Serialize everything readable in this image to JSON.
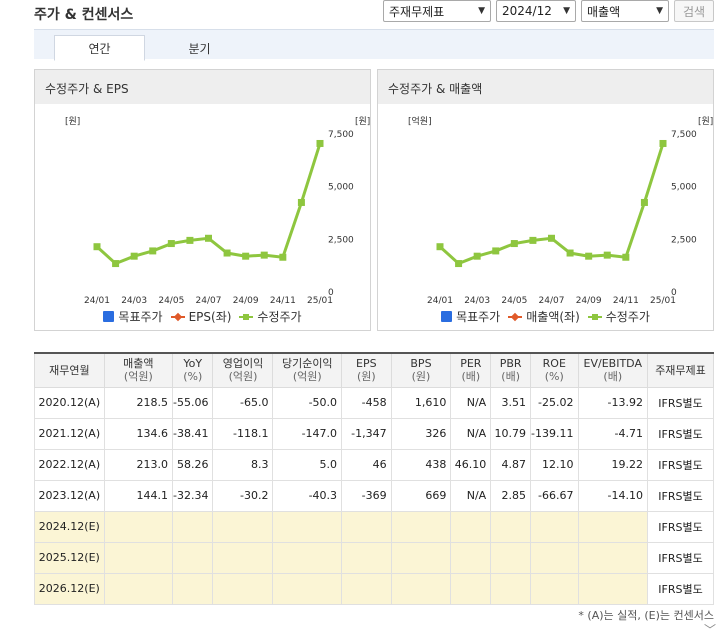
{
  "title": "주가 & 컨센서스",
  "controls": {
    "report_type": "주재무제표",
    "period": "2024/12",
    "metric": "매출액",
    "search": "검색"
  },
  "tabs": {
    "annual": "연간",
    "quarterly": "분기"
  },
  "charts": [
    {
      "title": "수정주가 & EPS",
      "left_unit": "[원]",
      "right_unit": "[원]",
      "legend": [
        "목표주가",
        "EPS(좌)",
        "수정주가"
      ]
    },
    {
      "title": "수정주가 & 매출액",
      "left_unit": "[억원]",
      "right_unit": "[원]",
      "legend": [
        "목표주가",
        "매출액(좌)",
        "수정주가"
      ]
    }
  ],
  "chart_data": [
    {
      "type": "line",
      "title": "수정주가 & EPS",
      "x": [
        "24/01",
        "24/02",
        "24/03",
        "24/04",
        "24/05",
        "24/06",
        "24/07",
        "24/08",
        "24/09",
        "24/10",
        "24/11",
        "24/12",
        "25/01"
      ],
      "x_tick_labels": [
        "24/01",
        "24/03",
        "24/05",
        "24/07",
        "24/09",
        "24/11",
        "25/01"
      ],
      "y_right_ticks": [
        "0",
        "2,500",
        "5,000",
        "7,500"
      ],
      "y_right_range": [
        0,
        7500
      ],
      "series": [
        {
          "name": "수정주가",
          "axis": "right",
          "color": "#8ec63f",
          "values": [
            2150,
            1350,
            1700,
            1950,
            2300,
            2450,
            2550,
            1850,
            1700,
            1750,
            1650,
            4250,
            7050
          ]
        }
      ]
    },
    {
      "type": "line",
      "title": "수정주가 & 매출액",
      "x": [
        "24/01",
        "24/02",
        "24/03",
        "24/04",
        "24/05",
        "24/06",
        "24/07",
        "24/08",
        "24/09",
        "24/10",
        "24/11",
        "24/12",
        "25/01"
      ],
      "x_tick_labels": [
        "24/01",
        "24/03",
        "24/05",
        "24/07",
        "24/09",
        "24/11",
        "25/01"
      ],
      "y_right_ticks": [
        "0",
        "2,500",
        "5,000",
        "7,500"
      ],
      "y_right_range": [
        0,
        7500
      ],
      "series": [
        {
          "name": "수정주가",
          "axis": "right",
          "color": "#8ec63f",
          "values": [
            2150,
            1350,
            1700,
            1950,
            2300,
            2450,
            2550,
            1850,
            1700,
            1750,
            1650,
            4250,
            7050
          ]
        }
      ]
    }
  ],
  "table": {
    "headers": [
      {
        "label": "재무연월",
        "unit": ""
      },
      {
        "label": "매출액",
        "unit": "(억원)"
      },
      {
        "label": "YoY",
        "unit": "(%)"
      },
      {
        "label": "영업이익",
        "unit": "(억원)"
      },
      {
        "label": "당기순이익",
        "unit": "(억원)"
      },
      {
        "label": "EPS",
        "unit": "(원)"
      },
      {
        "label": "BPS",
        "unit": "(원)"
      },
      {
        "label": "PER",
        "unit": "(배)"
      },
      {
        "label": "PBR",
        "unit": "(배)"
      },
      {
        "label": "ROE",
        "unit": "(%)"
      },
      {
        "label": "EV/EBITDA",
        "unit": "(배)"
      },
      {
        "label": "주재무제표",
        "unit": ""
      }
    ],
    "rows": [
      [
        "2020.12(A)",
        "218.5",
        "-55.06",
        "-65.0",
        "-50.0",
        "-458",
        "1,610",
        "N/A",
        "3.51",
        "-25.02",
        "-13.92",
        "IFRS별도"
      ],
      [
        "2021.12(A)",
        "134.6",
        "-38.41",
        "-118.1",
        "-147.0",
        "-1,347",
        "326",
        "N/A",
        "10.79",
        "-139.11",
        "-4.71",
        "IFRS별도"
      ],
      [
        "2022.12(A)",
        "213.0",
        "58.26",
        "8.3",
        "5.0",
        "46",
        "438",
        "46.10",
        "4.87",
        "12.10",
        "19.22",
        "IFRS별도"
      ],
      [
        "2023.12(A)",
        "144.1",
        "-32.34",
        "-30.2",
        "-40.3",
        "-369",
        "669",
        "N/A",
        "2.85",
        "-66.67",
        "-14.10",
        "IFRS별도"
      ],
      [
        "2024.12(E)",
        "",
        "",
        "",
        "",
        "",
        "",
        "",
        "",
        "",
        "",
        "IFRS별도"
      ],
      [
        "2025.12(E)",
        "",
        "",
        "",
        "",
        "",
        "",
        "",
        "",
        "",
        "",
        "IFRS별도"
      ],
      [
        "2026.12(E)",
        "",
        "",
        "",
        "",
        "",
        "",
        "",
        "",
        "",
        "",
        "IFRS별도"
      ]
    ]
  },
  "footnote": "* (A)는 실적, (E)는 컨센서스",
  "colors": {
    "target_price": "#2a6de0",
    "eps": "#e05a2a",
    "price": "#8ec63f"
  }
}
